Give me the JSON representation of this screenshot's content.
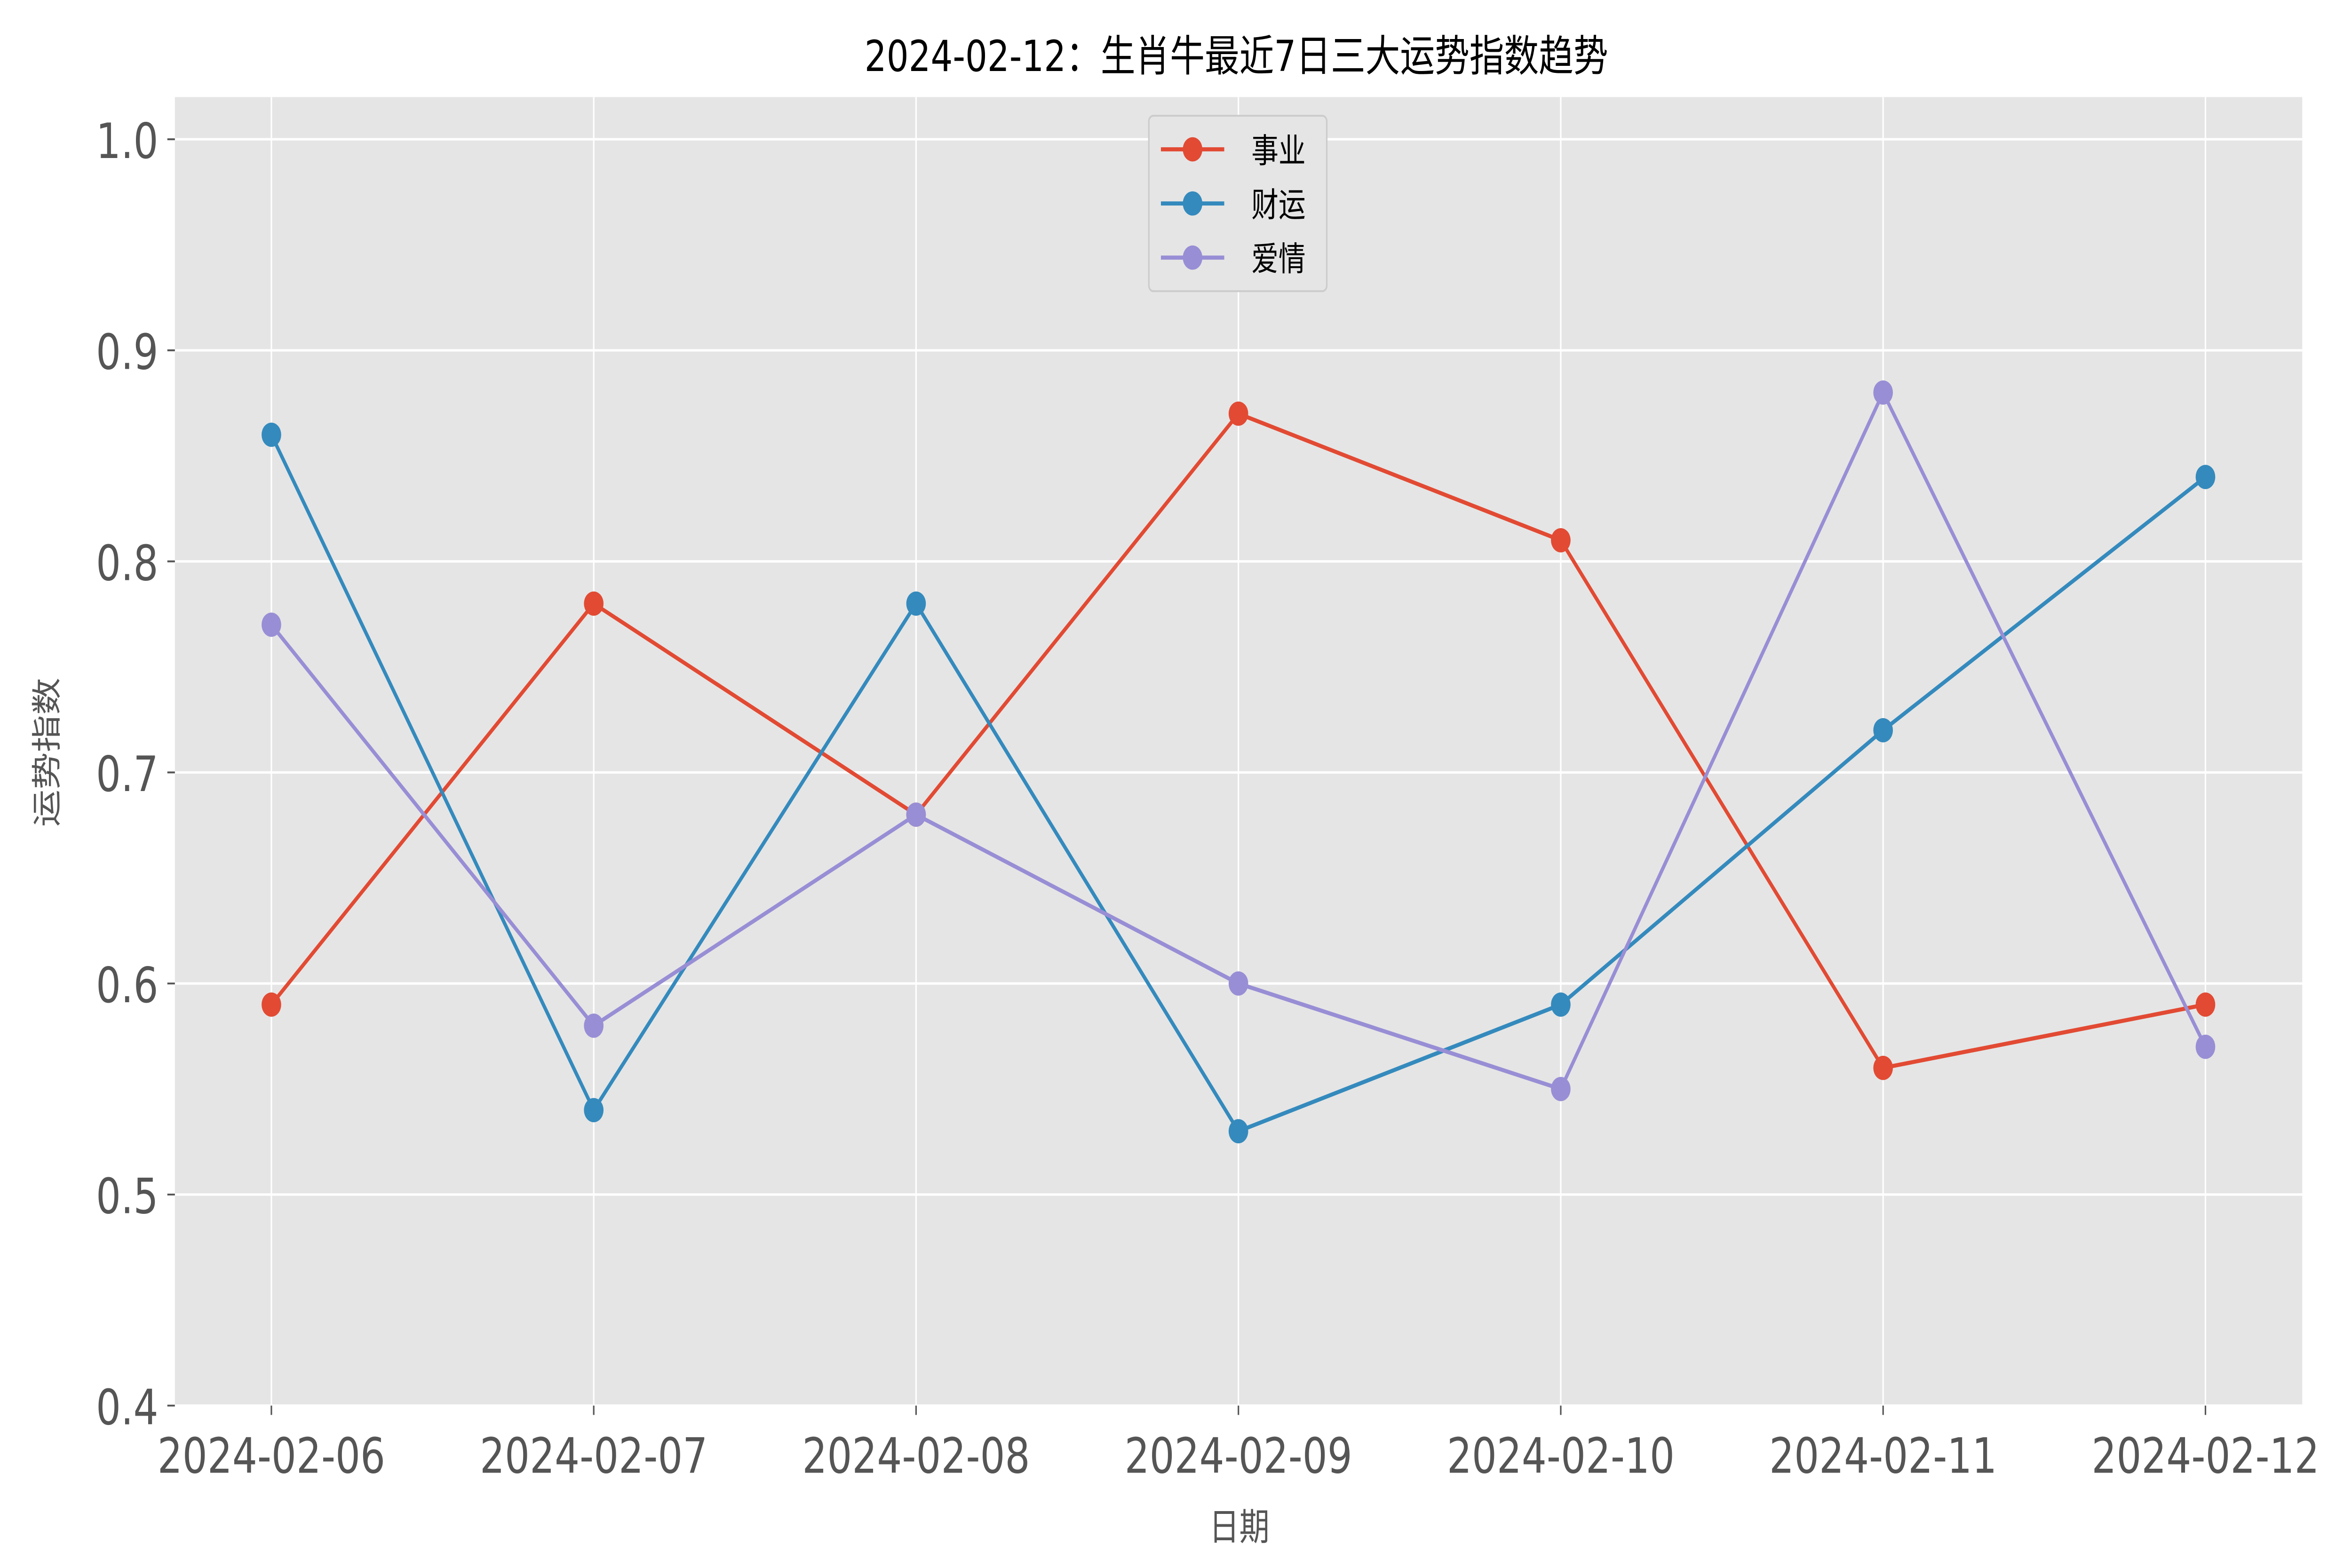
{
  "chart_data": {
    "type": "line",
    "title": "2024-02-12：生肖牛最近7日三大运势指数趋势",
    "xlabel": "日期",
    "ylabel": "运势指数",
    "categories": [
      "2024-02-06",
      "2024-02-07",
      "2024-02-08",
      "2024-02-09",
      "2024-02-10",
      "2024-02-11",
      "2024-02-12"
    ],
    "ylim": [
      0.4,
      1.02
    ],
    "yticks": [
      "0.4",
      "0.5",
      "0.6",
      "0.7",
      "0.8",
      "0.9",
      "1.0"
    ],
    "grid": true,
    "legend_position": "top-center",
    "background": "#e5e5e5",
    "series": [
      {
        "name": "事业",
        "color": "#e24a33",
        "values": [
          0.59,
          0.78,
          0.68,
          0.87,
          0.81,
          0.56,
          0.59
        ]
      },
      {
        "name": "财运",
        "color": "#348abd",
        "values": [
          0.86,
          0.54,
          0.78,
          0.53,
          0.59,
          0.72,
          0.84
        ]
      },
      {
        "name": "爱情",
        "color": "#988ed5",
        "values": [
          0.77,
          0.58,
          0.68,
          0.6,
          0.55,
          0.88,
          0.57
        ]
      }
    ]
  }
}
